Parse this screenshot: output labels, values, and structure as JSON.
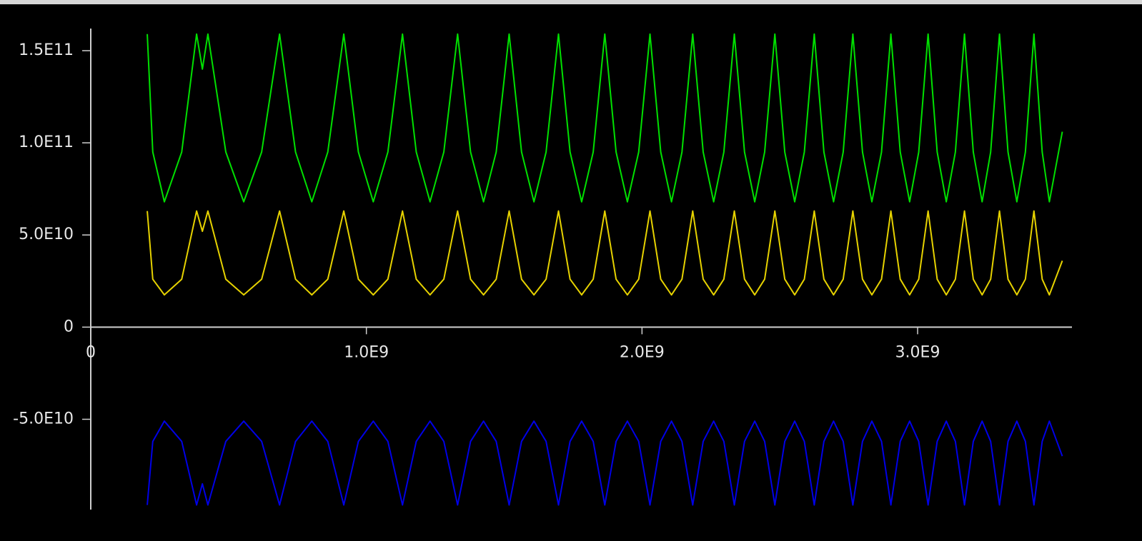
{
  "chart_data": {
    "type": "line",
    "x": [
      205000000.0,
      225000000.0,
      267000000.0,
      330000000.0,
      384000000.0,
      405000000.0,
      425000000.0,
      490000000.0,
      555000000.0,
      620000000.0,
      685000000.0,
      743000000.0,
      802000000.0,
      860000000.0,
      918000000.0,
      971000000.0,
      1025000000.0,
      1078000000.0,
      1131000000.0,
      1181000000.0,
      1231000000.0,
      1281000000.0,
      1331000000.0,
      1378000000.0,
      1425000000.0,
      1471000000.0,
      1518000000.0,
      1563000000.0,
      1608000000.0,
      1652000000.0,
      1697000000.0,
      1739000000.0,
      1781000000.0,
      1823000000.0,
      1865000000.0,
      1906000000.0,
      1947000000.0,
      1988000000.0,
      2029000000.0,
      2068000000.0,
      2107000000.0,
      2145000000.0,
      2184000000.0,
      2222000000.0,
      2260000000.0,
      2297000000.0,
      2335000000.0,
      2372000000.0,
      2409000000.0,
      2445000000.0,
      2482000000.0,
      2518000000.0,
      2554000000.0,
      2589000000.0,
      2625000000.0,
      2660000000.0,
      2695000000.0,
      2730000000.0,
      2765000000.0,
      2800000000.0,
      2834000000.0,
      2869000000.0,
      2903000000.0,
      2937000000.0,
      2971000000.0,
      3004000000.0,
      3038000000.0,
      3071000000.0,
      3104000000.0,
      3137000000.0,
      3170000000.0,
      3202000000.0,
      3234000000.0,
      3265000000.0,
      3297000000.0,
      3328000000.0,
      3360000000.0,
      3391000000.0,
      3422000000.0,
      3452000000.0,
      3478000000.0,
      3525000000.0
    ],
    "series": [
      {
        "color": "#00e000",
        "values": [
          159000000000.0,
          95000000000.0,
          68000000000.0,
          95000000000.0,
          159000000000.0,
          140000000000.0,
          159000000000.0,
          95000000000.0,
          68000000000.0,
          95000000000.0,
          159000000000.0,
          95000000000.0,
          68000000000.0,
          95000000000.0,
          159000000000.0,
          95000000000.0,
          68000000000.0,
          95000000000.0,
          159000000000.0,
          95000000000.0,
          68000000000.0,
          95000000000.0,
          159000000000.0,
          95000000000.0,
          68000000000.0,
          95000000000.0,
          159000000000.0,
          95000000000.0,
          68000000000.0,
          95000000000.0,
          159000000000.0,
          95000000000.0,
          68000000000.0,
          95000000000.0,
          159000000000.0,
          95000000000.0,
          68000000000.0,
          95000000000.0,
          159000000000.0,
          95000000000.0,
          68000000000.0,
          95000000000.0,
          159000000000.0,
          95000000000.0,
          68000000000.0,
          95000000000.0,
          159000000000.0,
          95000000000.0,
          68000000000.0,
          95000000000.0,
          159000000000.0,
          95000000000.0,
          68000000000.0,
          95000000000.0,
          159000000000.0,
          95000000000.0,
          68000000000.0,
          95000000000.0,
          159000000000.0,
          95000000000.0,
          68000000000.0,
          95000000000.0,
          159000000000.0,
          95000000000.0,
          68000000000.0,
          95000000000.0,
          159000000000.0,
          95000000000.0,
          68000000000.0,
          95000000000.0,
          159000000000.0,
          95000000000.0,
          68000000000.0,
          95000000000.0,
          159000000000.0,
          95000000000.0,
          68000000000.0,
          95000000000.0,
          159000000000.0,
          95000000000.0,
          68000000000.0,
          106000000000.0
        ]
      },
      {
        "color": "#e6d200",
        "values": [
          63000000000.0,
          26000000000.0,
          17500000000.0,
          26000000000.0,
          63000000000.0,
          52000000000.0,
          63000000000.0,
          26000000000.0,
          17500000000.0,
          26000000000.0,
          63000000000.0,
          26000000000.0,
          17500000000.0,
          26000000000.0,
          63000000000.0,
          26000000000.0,
          17500000000.0,
          26000000000.0,
          63000000000.0,
          26000000000.0,
          17500000000.0,
          26000000000.0,
          63000000000.0,
          26000000000.0,
          17500000000.0,
          26000000000.0,
          63000000000.0,
          26000000000.0,
          17500000000.0,
          26000000000.0,
          63000000000.0,
          26000000000.0,
          17500000000.0,
          26000000000.0,
          63000000000.0,
          26000000000.0,
          17500000000.0,
          26000000000.0,
          63000000000.0,
          26000000000.0,
          17500000000.0,
          26000000000.0,
          63000000000.0,
          26000000000.0,
          17500000000.0,
          26000000000.0,
          63000000000.0,
          26000000000.0,
          17500000000.0,
          26000000000.0,
          63000000000.0,
          26000000000.0,
          17500000000.0,
          26000000000.0,
          63000000000.0,
          26000000000.0,
          17500000000.0,
          26000000000.0,
          63000000000.0,
          26000000000.0,
          17500000000.0,
          26000000000.0,
          63000000000.0,
          26000000000.0,
          17500000000.0,
          26000000000.0,
          63000000000.0,
          26000000000.0,
          17500000000.0,
          26000000000.0,
          63000000000.0,
          26000000000.0,
          17500000000.0,
          26000000000.0,
          63000000000.0,
          26000000000.0,
          17500000000.0,
          26000000000.0,
          63000000000.0,
          26000000000.0,
          17500000000.0,
          36000000000.0
        ]
      },
      {
        "color": "#0000e6",
        "values": [
          -96500000000.0,
          -62000000000.0,
          -51000000000.0,
          -62000000000.0,
          -96500000000.0,
          -85000000000.0,
          -96500000000.0,
          -62000000000.0,
          -51000000000.0,
          -62000000000.0,
          -96500000000.0,
          -62000000000.0,
          -51000000000.0,
          -62000000000.0,
          -96500000000.0,
          -62000000000.0,
          -51000000000.0,
          -62000000000.0,
          -96500000000.0,
          -62000000000.0,
          -51000000000.0,
          -62000000000.0,
          -96500000000.0,
          -62000000000.0,
          -51000000000.0,
          -62000000000.0,
          -96500000000.0,
          -62000000000.0,
          -51000000000.0,
          -62000000000.0,
          -96500000000.0,
          -62000000000.0,
          -51000000000.0,
          -62000000000.0,
          -96500000000.0,
          -62000000000.0,
          -51000000000.0,
          -62000000000.0,
          -96500000000.0,
          -62000000000.0,
          -51000000000.0,
          -62000000000.0,
          -96500000000.0,
          -62000000000.0,
          -51000000000.0,
          -62000000000.0,
          -96500000000.0,
          -62000000000.0,
          -51000000000.0,
          -62000000000.0,
          -96500000000.0,
          -62000000000.0,
          -51000000000.0,
          -62000000000.0,
          -96500000000.0,
          -62000000000.0,
          -51000000000.0,
          -62000000000.0,
          -96500000000.0,
          -62000000000.0,
          -51000000000.0,
          -62000000000.0,
          -96500000000.0,
          -62000000000.0,
          -51000000000.0,
          -62000000000.0,
          -96500000000.0,
          -62000000000.0,
          -51000000000.0,
          -62000000000.0,
          -96500000000.0,
          -62000000000.0,
          -51000000000.0,
          -62000000000.0,
          -96500000000.0,
          -62000000000.0,
          -51000000000.0,
          -62000000000.0,
          -96500000000.0,
          -62000000000.0,
          -51000000000.0,
          -70000000000.0
        ]
      }
    ],
    "xlim": [
      0,
      3560000000.0
    ],
    "ylim": [
      -99000000000.0,
      162000000000.0
    ],
    "xticks": [
      0,
      {
        "value": 1000000000.0,
        "label": "1.0E9"
      },
      {
        "value": 2000000000.0,
        "label": "2.0E9"
      },
      {
        "value": 3000000000.0,
        "label": "3.0E9"
      }
    ],
    "yticks": [
      {
        "value": -50000000000.0,
        "label": "-5.0E10"
      },
      0,
      {
        "value": 50000000000.0,
        "label": "5.0E10"
      },
      {
        "value": 100000000000.0,
        "label": "1.0E11"
      },
      {
        "value": 150000000000.0,
        "label": "1.5E11"
      }
    ]
  }
}
